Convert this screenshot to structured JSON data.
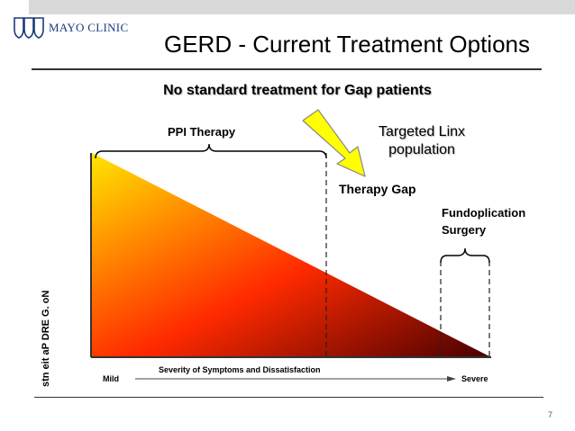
{
  "logo": {
    "text": "MAYO CLINIC",
    "icon": "mayo-shields-icon"
  },
  "title": "GERD - Current Treatment Options",
  "subtitle": "No standard treatment for Gap patients",
  "labels": {
    "ppi": "PPI Therapy",
    "linx_line1": "Targeted Linx",
    "linx_line2": "population",
    "gap": "Therapy Gap",
    "surgery_line1": "Fundoplication",
    "surgery_line2": "Surgery"
  },
  "axis": {
    "x_title": "Severity of Symptoms and Dissatisfaction",
    "x_min": "Mild",
    "x_max": "Severe",
    "y_title": "stn eit aP DRE G. oN"
  },
  "page_number": "7",
  "colors": {
    "gradient_start": "#ffe600",
    "gradient_mid": "#ff2a00",
    "gradient_end": "#4a0000",
    "arrow": "#ffff00",
    "logo": "#1a3c7a"
  }
}
